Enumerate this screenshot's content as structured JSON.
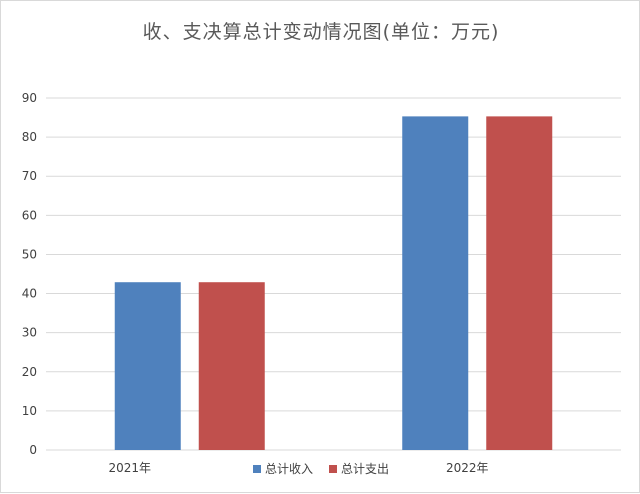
{
  "chart_data": {
    "type": "bar",
    "title": "收、支决算总计变动情况图(单位：万元)",
    "xlabel": "",
    "ylabel": "",
    "categories": [
      "2021年",
      "2022年"
    ],
    "series": [
      {
        "name": "总计收入",
        "color": "#4f81bd",
        "values": [
          42.9,
          85.3
        ]
      },
      {
        "name": "总计支出",
        "color": "#c0504d",
        "values": [
          42.9,
          85.3
        ]
      }
    ],
    "ylim": [
      0,
      90
    ],
    "yticks": [
      0,
      10,
      20,
      30,
      40,
      50,
      60,
      70,
      80,
      90
    ],
    "grid": true,
    "legend": "bottom"
  }
}
